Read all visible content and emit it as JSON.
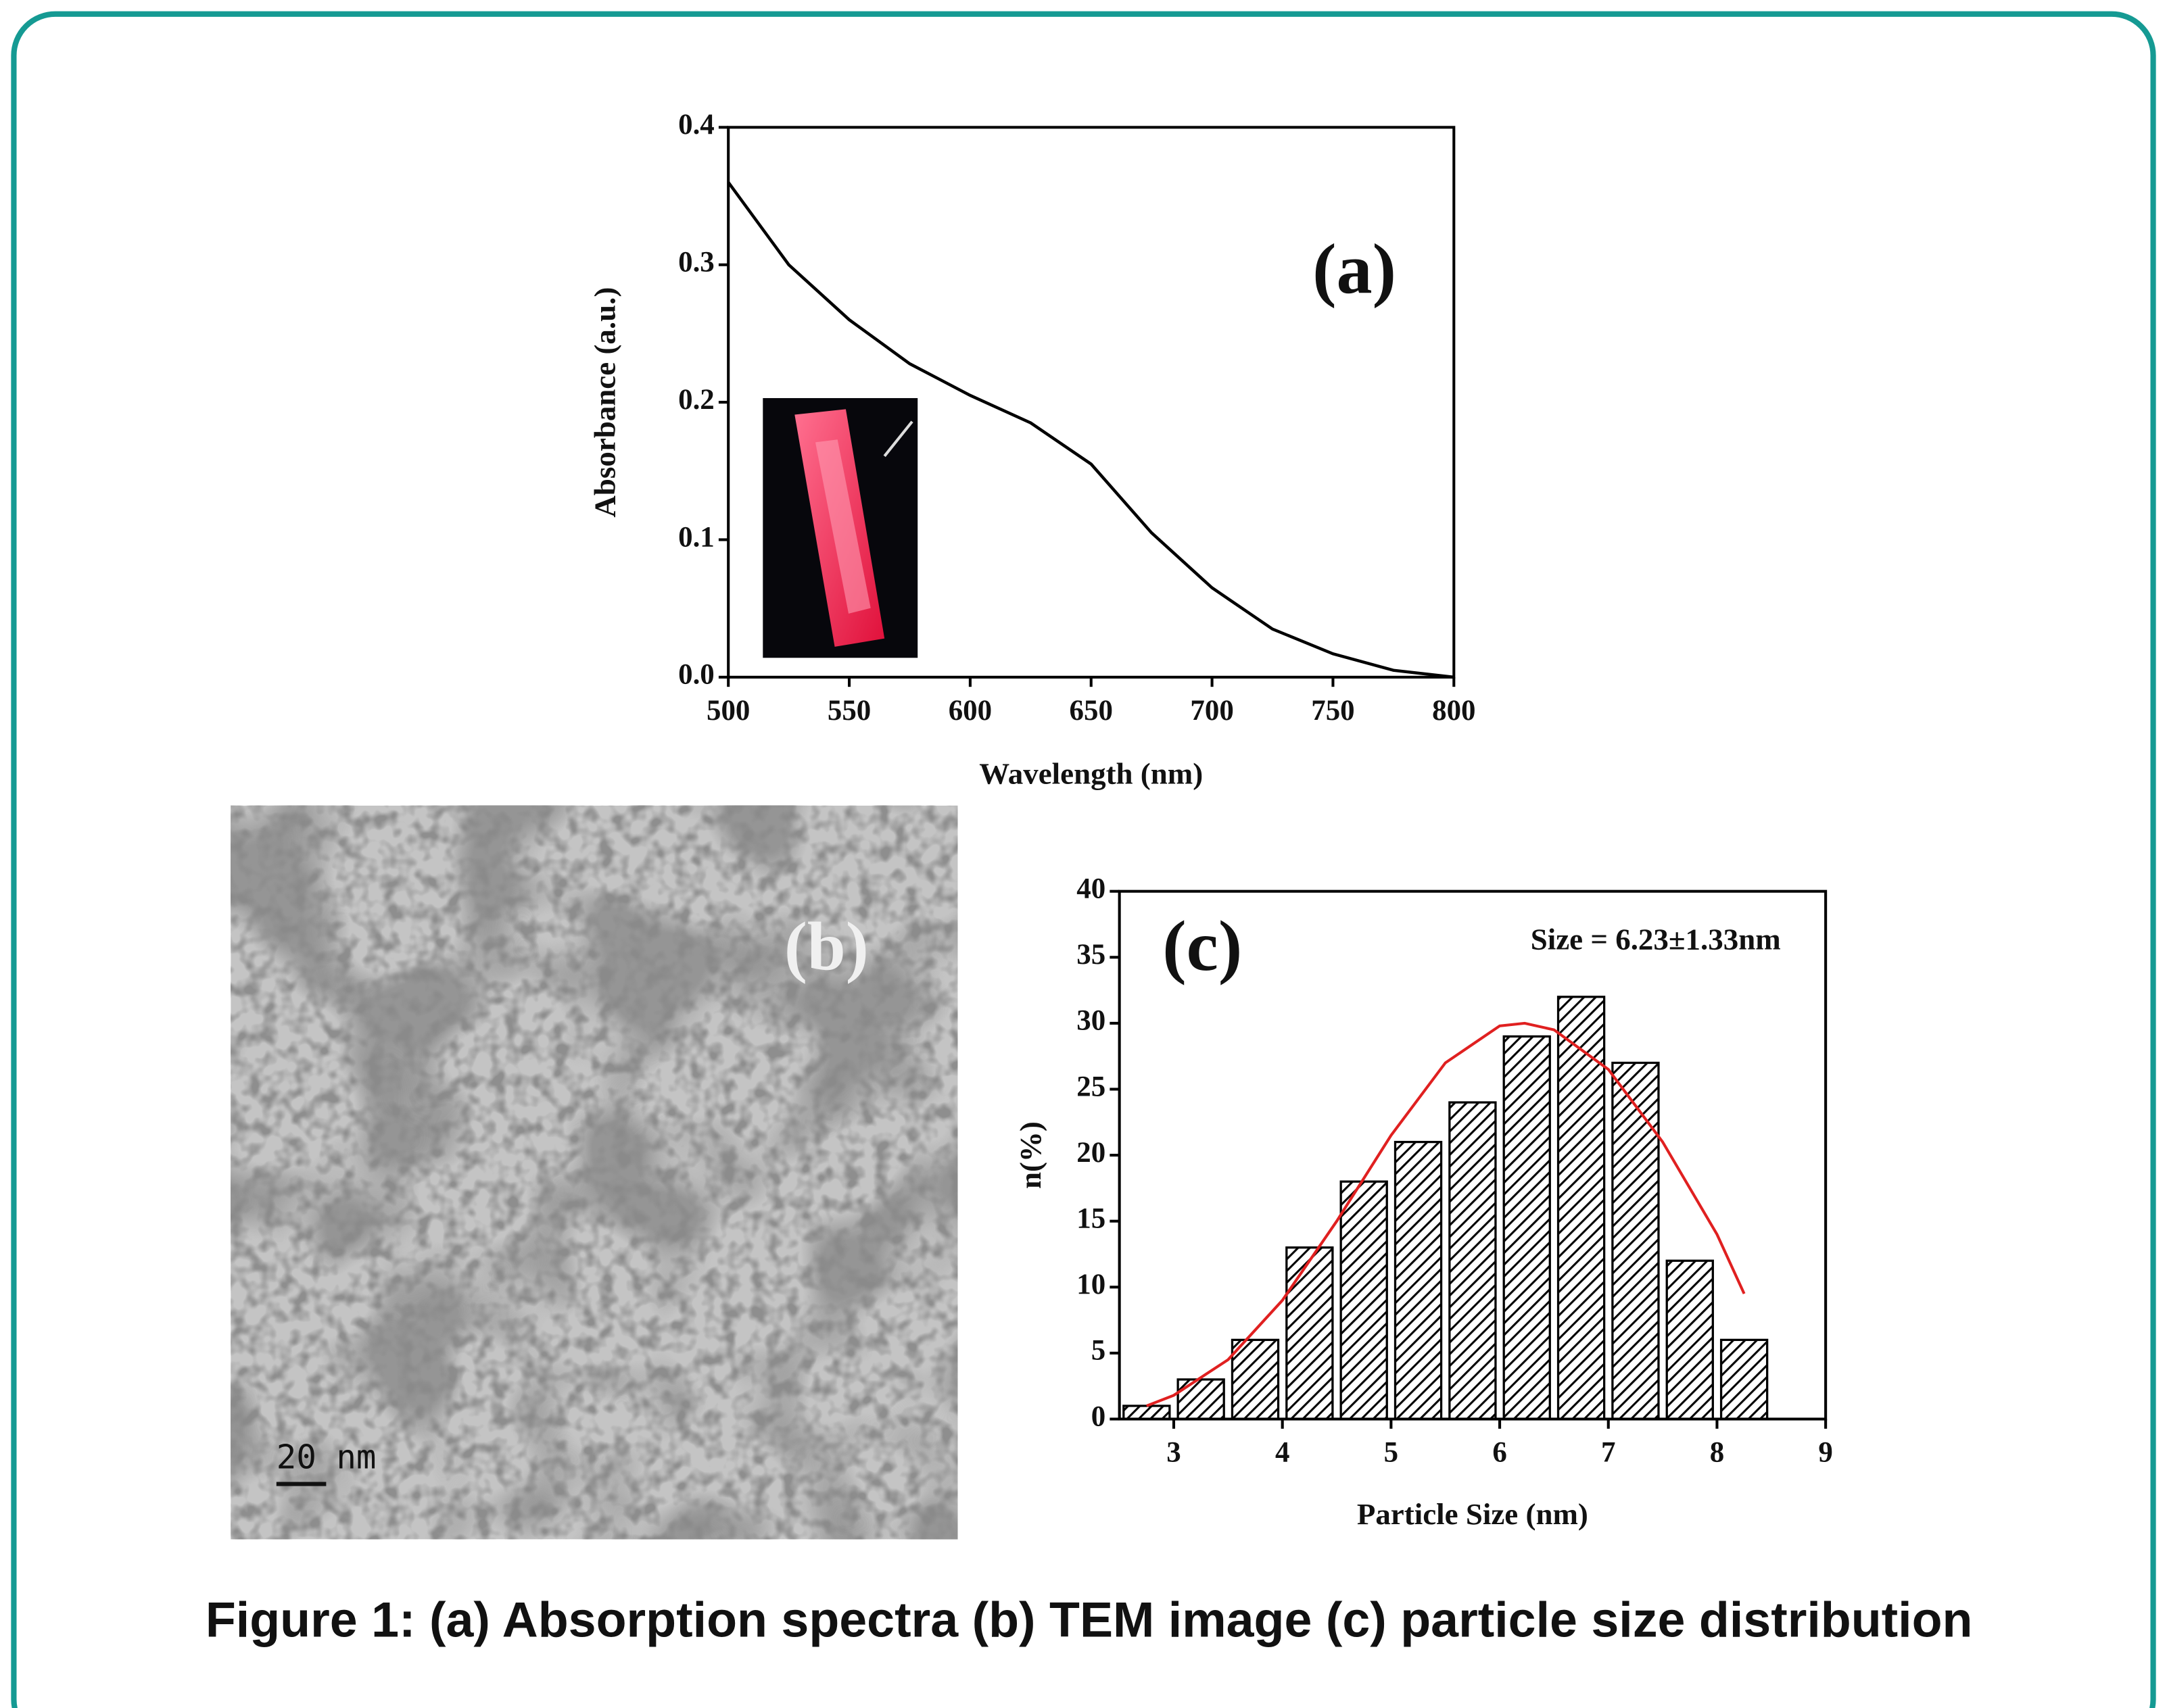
{
  "caption": "Figure 1: (a) Absorption spectra (b) TEM image (c) particle size distribution",
  "tem": {
    "label": "(b)",
    "scale_bar": "20 nm"
  },
  "chart_data": [
    {
      "type": "line",
      "annotation": "(a)",
      "x_label": "Wavelength (nm)",
      "y_label": "Absorbance (a.u.)",
      "x": [
        500,
        525,
        550,
        575,
        600,
        625,
        650,
        675,
        700,
        725,
        750,
        775,
        800
      ],
      "values": [
        0.36,
        0.3,
        0.26,
        0.228,
        0.205,
        0.185,
        0.155,
        0.105,
        0.065,
        0.035,
        0.017,
        0.005,
        0.0
      ],
      "color": "#000000",
      "xlim": [
        500,
        800
      ],
      "xticks": [
        500,
        550,
        600,
        650,
        700,
        750,
        800
      ],
      "ylim": [
        0,
        0.4
      ],
      "yticks": [
        {
          "value": 0,
          "label": "0.0"
        },
        0.1,
        0.2,
        0.3,
        0.4
      ]
    },
    {
      "type": "histogram",
      "annotation": "(c)",
      "subtitle": "Size = 6.23±1.33nm",
      "x_label": "Particle Size (nm)",
      "y_label": "n(%)",
      "bins": [
        2.5,
        3.0,
        3.5,
        4.0,
        4.5,
        5.0,
        5.5,
        6.0,
        6.5,
        7.0,
        7.5,
        8.0,
        8.5
      ],
      "values": [
        1,
        3,
        6,
        13,
        18,
        21,
        24,
        29,
        32,
        27,
        12,
        6
      ],
      "color": "#000000",
      "curve": {
        "x": [
          2.75,
          3.0,
          3.5,
          4.0,
          4.5,
          5.0,
          5.5,
          6.0,
          6.23,
          6.5,
          7.0,
          7.5,
          8.0,
          8.25
        ],
        "values": [
          1,
          1.8,
          4.5,
          9,
          15,
          21.5,
          27,
          29.8,
          30,
          29.5,
          26.5,
          21,
          14,
          9.5
        ],
        "color": "#e02020"
      },
      "xlim": [
        2.5,
        9
      ],
      "xticks": [
        3,
        4,
        5,
        6,
        7,
        8,
        9
      ],
      "ylim": [
        0,
        40
      ],
      "yticks": [
        0,
        5,
        10,
        15,
        20,
        25,
        30,
        35,
        40
      ]
    }
  ]
}
